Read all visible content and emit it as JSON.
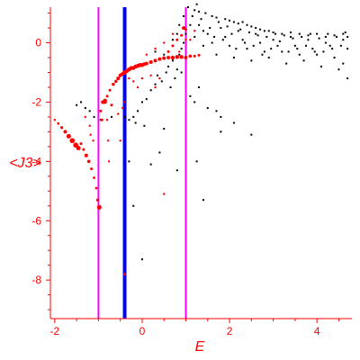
{
  "chart_data": {
    "type": "scatter",
    "title": "",
    "xlabel": "E",
    "ylabel": "<J3>",
    "xlim": [
      -2.1,
      4.8
    ],
    "ylim": [
      -9.3,
      1.2
    ],
    "x_ticks": [
      -2,
      0,
      2,
      4
    ],
    "y_ticks": [
      0,
      -2,
      -4,
      -6,
      -8
    ],
    "colors": {
      "axes": "#ff0000",
      "red_series": "#ff0000",
      "black_series": "#000000",
      "blue_line": "#0000ff",
      "magenta_lines": "#ff00ff"
    },
    "vertical_lines": [
      {
        "x": -1.0,
        "color": "#ff00ff"
      },
      {
        "x": -0.4,
        "color": "#0000ff"
      },
      {
        "x": 1.0,
        "color": "#ff00ff"
      }
    ],
    "series": [
      {
        "color": "#ff0000",
        "points": [
          [
            -2.0,
            -2.6,
            1.2
          ],
          [
            -1.92,
            -2.72,
            1.4
          ],
          [
            -1.84,
            -2.86,
            1.6
          ],
          [
            -1.76,
            -3.0,
            2.0
          ],
          [
            -1.68,
            -3.15,
            2.5
          ],
          [
            -1.6,
            -3.3,
            2.8
          ],
          [
            -1.52,
            -3.45,
            2.8
          ],
          [
            -1.46,
            -3.55,
            2.5
          ],
          [
            -1.4,
            -3.4,
            1.5
          ],
          [
            -1.34,
            -3.6,
            1.5
          ],
          [
            -1.28,
            -3.8,
            2.0
          ],
          [
            -1.22,
            -4.0,
            1.8
          ],
          [
            -1.16,
            -4.25,
            1.5
          ],
          [
            -1.1,
            -4.55,
            1.4
          ],
          [
            -1.05,
            -4.9,
            1.4
          ],
          [
            -1.02,
            -5.3,
            1.6
          ],
          [
            -0.98,
            -5.55,
            2.5
          ],
          [
            -1.12,
            -3.3,
            1.2
          ],
          [
            -1.18,
            -3.1,
            1.2
          ],
          [
            -0.95,
            -2.3,
            1.5
          ],
          [
            -0.92,
            -2.6,
            1.5
          ],
          [
            -0.85,
            -2.0,
            2.0
          ],
          [
            -0.8,
            -2.6,
            1.2
          ],
          [
            -0.78,
            -3.3,
            1.2
          ],
          [
            -0.76,
            -4.0,
            1.2
          ],
          [
            -0.8,
            -1.8,
            1.5
          ],
          [
            -0.74,
            -1.6,
            1.5
          ],
          [
            -0.7,
            -2.1,
            1.5
          ],
          [
            -0.66,
            -1.4,
            1.8
          ],
          [
            -0.6,
            -1.3,
            1.8
          ],
          [
            -0.55,
            -1.2,
            2.0
          ],
          [
            -0.5,
            -1.1,
            2.0
          ],
          [
            -0.45,
            -1.05,
            2.0
          ],
          [
            -0.4,
            -1.0,
            2.5
          ],
          [
            -0.35,
            -0.95,
            2.2
          ],
          [
            -0.3,
            -0.9,
            2.2
          ],
          [
            -0.25,
            -0.85,
            2.2
          ],
          [
            -0.2,
            -0.85,
            2.2
          ],
          [
            -0.15,
            -0.8,
            2.2
          ],
          [
            -0.1,
            -0.78,
            2.2
          ],
          [
            -0.05,
            -0.75,
            2.2
          ],
          [
            0.0,
            -0.75,
            2.2
          ],
          [
            0.05,
            -0.72,
            2.0
          ],
          [
            0.1,
            -0.7,
            2.0
          ],
          [
            0.2,
            -0.65,
            2.0
          ],
          [
            0.3,
            -0.6,
            2.0
          ],
          [
            0.4,
            -0.55,
            2.0
          ],
          [
            0.5,
            -0.52,
            2.0
          ],
          [
            0.6,
            -0.5,
            2.0
          ],
          [
            0.7,
            -0.5,
            2.2
          ],
          [
            0.8,
            -0.48,
            2.2
          ],
          [
            0.9,
            -0.48,
            2.2
          ],
          [
            1.0,
            -0.5,
            2.0
          ],
          [
            1.1,
            -0.45,
            1.8
          ],
          [
            1.2,
            -0.45,
            1.5
          ],
          [
            1.3,
            -0.42,
            1.5
          ],
          [
            -0.9,
            -2.0,
            2.0
          ],
          [
            -0.85,
            -1.95,
            2.2
          ],
          [
            -0.4,
            -2.0,
            1.2
          ],
          [
            -0.45,
            -2.2,
            1.2
          ],
          [
            -0.55,
            -2.4,
            1.2
          ],
          [
            -0.5,
            -3.3,
            1.2
          ],
          [
            -0.4,
            -7.8,
            1.5
          ],
          [
            0.5,
            -5.1,
            1.2
          ],
          [
            0.4,
            -1.2,
            1.2
          ],
          [
            0.3,
            -1.5,
            1.2
          ],
          [
            0.6,
            -0.3,
            1.5
          ],
          [
            0.7,
            -0.1,
            1.5
          ],
          [
            0.8,
            0.1,
            1.5
          ],
          [
            0.9,
            0.25,
            1.5
          ],
          [
            1.0,
            0.45,
            1.5
          ],
          [
            0.95,
            0.5,
            2.0
          ],
          [
            0.7,
            0.3,
            1.2
          ],
          [
            0.5,
            0.0,
            1.2
          ],
          [
            0.3,
            -0.2,
            1.2
          ],
          [
            0.1,
            -0.4,
            1.2
          ],
          [
            1.1,
            0.1,
            1.2
          ],
          [
            1.2,
            0.4,
            1.2
          ],
          [
            1.0,
            0.1,
            1.2
          ],
          [
            0.85,
            -0.3,
            1.2
          ],
          [
            -0.3,
            -1.2,
            1.2
          ],
          [
            -0.2,
            -1.3,
            1.2
          ],
          [
            -0.1,
            -1.5,
            1.2
          ],
          [
            0.0,
            -1.2,
            1.2
          ],
          [
            0.2,
            -1.1,
            1.2
          ],
          [
            -1.3,
            -2.5,
            1.2
          ],
          [
            -1.2,
            -2.8,
            1.2
          ]
        ]
      },
      {
        "color": "#000000",
        "points": [
          [
            -1.5,
            -2.1
          ],
          [
            -1.3,
            -2.2
          ],
          [
            -1.2,
            -2.3
          ],
          [
            -1.1,
            -2.5
          ],
          [
            -1.4,
            -2.0
          ],
          [
            -0.95,
            -2.6
          ],
          [
            -0.7,
            -2.5
          ],
          [
            -0.4,
            -2.5
          ],
          [
            -0.3,
            -2.6
          ],
          [
            -0.2,
            -2.5
          ],
          [
            -0.1,
            -2.3
          ],
          [
            0.0,
            -2.0
          ],
          [
            -0.15,
            -2.7
          ],
          [
            0.05,
            -2.8
          ],
          [
            0.1,
            -1.9
          ],
          [
            0.2,
            -1.6
          ],
          [
            0.3,
            -1.4
          ],
          [
            0.35,
            -1.1
          ],
          [
            0.45,
            -1.3
          ],
          [
            0.55,
            -1.0
          ],
          [
            0.6,
            -0.8
          ],
          [
            0.65,
            -1.5
          ],
          [
            0.7,
            -0.6
          ],
          [
            0.75,
            -1.2
          ],
          [
            0.8,
            -0.9
          ],
          [
            0.85,
            -0.4
          ],
          [
            0.9,
            -0.2
          ],
          [
            0.95,
            0.0
          ],
          [
            1.0,
            0.3
          ],
          [
            0.9,
            -1.0
          ],
          [
            0.5,
            -2.9
          ],
          [
            0.8,
            -4.3
          ],
          [
            1.25,
            -4.0
          ],
          [
            1.4,
            -5.3
          ],
          [
            1.1,
            -1.8
          ],
          [
            1.2,
            -2.0
          ],
          [
            1.5,
            -2.2
          ],
          [
            1.7,
            -2.3
          ],
          [
            1.8,
            -2.5
          ],
          [
            1.8,
            -3.0
          ],
          [
            2.1,
            -2.7
          ],
          [
            2.5,
            -3.1
          ],
          [
            0.0,
            -7.3
          ],
          [
            -0.3,
            -4.0
          ],
          [
            -0.2,
            -5.5
          ],
          [
            0.4,
            -3.7
          ],
          [
            0.2,
            -4.1
          ],
          [
            1.3,
            -1.5
          ],
          [
            0.3,
            -0.3
          ],
          [
            0.5,
            -0.4
          ],
          [
            0.7,
            0.1
          ],
          [
            0.8,
            0.3
          ],
          [
            0.85,
            0.6
          ],
          [
            1.1,
            0.6
          ],
          [
            1.15,
            0.9
          ],
          [
            1.2,
            1.1
          ],
          [
            1.3,
            1.05
          ],
          [
            1.35,
            0.8
          ],
          [
            1.45,
            1.0
          ],
          [
            1.6,
            0.9
          ],
          [
            1.7,
            0.85
          ],
          [
            1.9,
            0.8
          ],
          [
            2.0,
            0.75
          ],
          [
            2.1,
            0.7
          ],
          [
            2.2,
            0.65
          ],
          [
            2.3,
            0.7
          ],
          [
            2.4,
            0.6
          ],
          [
            2.5,
            0.55
          ],
          [
            2.6,
            0.5
          ],
          [
            2.7,
            0.45
          ],
          [
            2.8,
            0.4
          ],
          [
            2.9,
            0.4
          ],
          [
            3.0,
            0.35
          ],
          [
            3.2,
            0.3
          ],
          [
            3.4,
            0.35
          ],
          [
            3.6,
            0.3
          ],
          [
            3.8,
            0.25
          ],
          [
            4.0,
            0.3
          ],
          [
            4.2,
            0.2
          ],
          [
            4.4,
            0.25
          ],
          [
            4.6,
            0.3
          ],
          [
            4.7,
            0.2
          ],
          [
            1.8,
            0.5
          ],
          [
            2.2,
            0.4
          ],
          [
            2.6,
            0.3
          ],
          [
            3.0,
            0.1
          ],
          [
            3.4,
            0.2
          ],
          [
            3.8,
            0.1
          ],
          [
            4.2,
            0.0
          ],
          [
            4.6,
            0.1
          ],
          [
            1.5,
            0.3
          ],
          [
            1.9,
            0.2
          ],
          [
            2.3,
            0.1
          ],
          [
            2.7,
            0.0
          ],
          [
            3.1,
            -0.1
          ],
          [
            3.5,
            -0.1
          ],
          [
            3.9,
            -0.2
          ],
          [
            4.3,
            -0.1
          ],
          [
            4.7,
            -0.2
          ],
          [
            1.6,
            0.0
          ],
          [
            2.0,
            -0.1
          ],
          [
            2.4,
            -0.2
          ],
          [
            2.8,
            -0.3
          ],
          [
            3.2,
            -0.3
          ],
          [
            3.6,
            -0.4
          ],
          [
            4.0,
            -0.4
          ],
          [
            4.4,
            -0.5
          ],
          [
            4.6,
            -0.7
          ],
          [
            1.7,
            -0.4
          ],
          [
            2.1,
            -0.5
          ],
          [
            2.5,
            -0.6
          ],
          [
            2.9,
            -0.5
          ],
          [
            3.3,
            -0.7
          ],
          [
            3.7,
            -0.6
          ],
          [
            4.1,
            -0.8
          ],
          [
            4.5,
            -0.9
          ],
          [
            4.7,
            -1.2
          ],
          [
            1.4,
            -0.1
          ],
          [
            1.55,
            0.5
          ],
          [
            1.65,
            0.2
          ],
          [
            1.75,
            0.7
          ],
          [
            1.85,
            0.1
          ],
          [
            1.95,
            0.55
          ],
          [
            2.05,
            0.3
          ],
          [
            2.15,
            -0.2
          ],
          [
            2.25,
            0.45
          ],
          [
            2.35,
            0.0
          ],
          [
            2.45,
            0.35
          ],
          [
            2.55,
            -0.1
          ],
          [
            2.65,
            0.25
          ],
          [
            2.75,
            -0.4
          ],
          [
            2.85,
            0.2
          ],
          [
            2.95,
            -0.2
          ],
          [
            3.05,
            0.3
          ],
          [
            3.15,
            0.05
          ],
          [
            3.25,
            0.25
          ],
          [
            3.35,
            -0.3
          ],
          [
            3.45,
            0.15
          ],
          [
            3.55,
            -0.2
          ],
          [
            3.65,
            0.2
          ],
          [
            3.75,
            -0.1
          ],
          [
            3.85,
            0.3
          ],
          [
            3.95,
            -0.3
          ],
          [
            4.05,
            0.15
          ],
          [
            4.15,
            -0.3
          ],
          [
            4.25,
            0.3
          ],
          [
            4.35,
            -0.2
          ],
          [
            4.45,
            0.2
          ],
          [
            4.55,
            -0.1
          ],
          [
            4.65,
            0.35
          ],
          [
            1.25,
            1.3
          ],
          [
            1.05,
            1.2
          ],
          [
            0.95,
            0.9
          ],
          [
            1.3,
            0.6
          ],
          [
            1.4,
            0.4
          ],
          [
            1.2,
            0.2
          ]
        ]
      }
    ]
  }
}
